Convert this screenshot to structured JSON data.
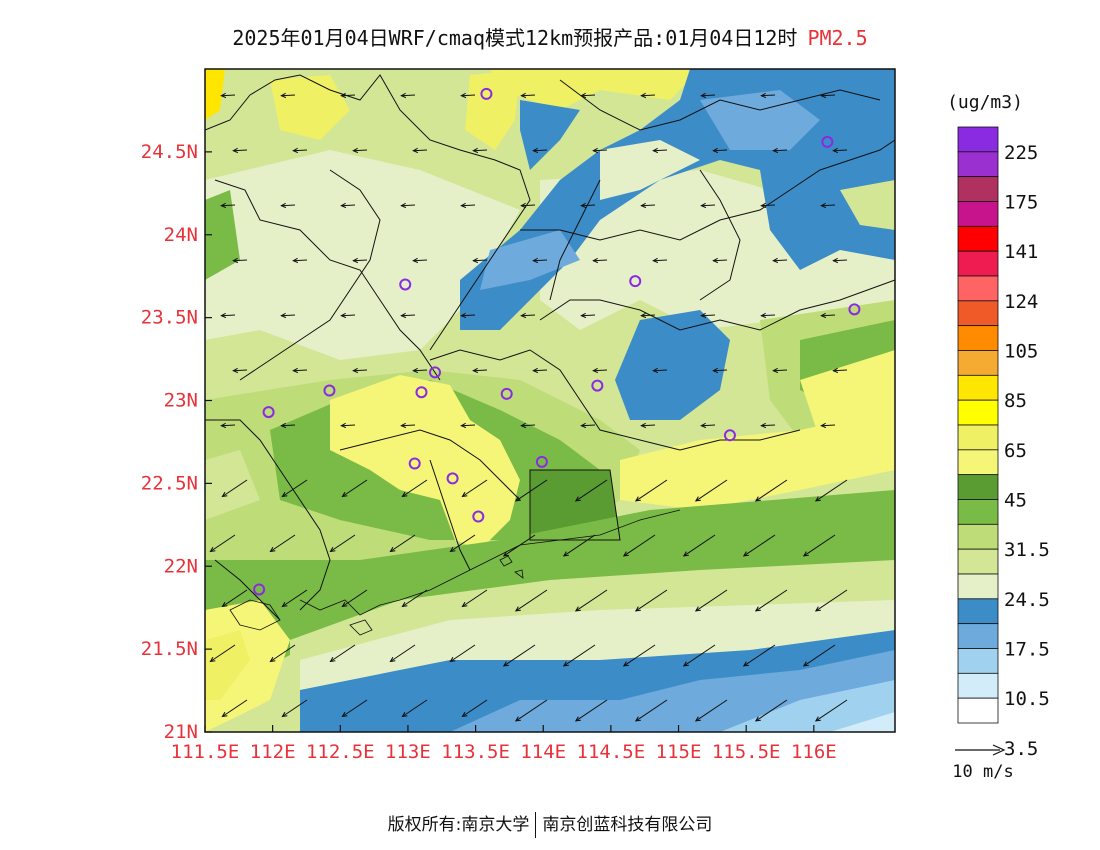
{
  "title": {
    "main": "2025年01月04日WRF/cmaq模式12km预报产品:01月04日12时",
    "pollutant": "PM2.5"
  },
  "axes": {
    "lon_range": [
      111.5,
      116.6
    ],
    "lat_range": [
      21.0,
      25.0
    ],
    "x_ticks": [
      "111.5E",
      "112E",
      "112.5E",
      "113E",
      "113.5E",
      "114E",
      "114.5E",
      "115E",
      "115.5E",
      "116E"
    ],
    "x_values": [
      111.5,
      112.0,
      112.5,
      113.0,
      113.5,
      114.0,
      114.5,
      115.0,
      115.5,
      116.0
    ],
    "y_ticks": [
      "21N",
      "21.5N",
      "22N",
      "22.5N",
      "23N",
      "23.5N",
      "24N",
      "24.5N"
    ],
    "y_values": [
      21.0,
      21.5,
      22.0,
      22.5,
      23.0,
      23.5,
      24.0,
      24.5
    ],
    "tick_color": "#e8323a"
  },
  "legend": {
    "unit": "(ug/m3)",
    "labels": [
      "225",
      "175",
      "141",
      "124",
      "105",
      "85",
      "65",
      "45",
      "31.5",
      "24.5",
      "17.5",
      "10.5",
      "3.5"
    ],
    "colors_top_to_bottom": [
      "#8a2be2",
      "#9b30d0",
      "#b03060",
      "#c8148c",
      "#ff0000",
      "#ee1c50",
      "#ff6464",
      "#f05a28",
      "#ff8c00",
      "#f5aa32",
      "#ffe600",
      "#ffff00",
      "#f0f064",
      "#f5f578",
      "#5a9b32",
      "#7aba46",
      "#bedc78",
      "#d2e696",
      "#e6f0c8",
      "#3c8cc8",
      "#6eaadc",
      "#a0d2f0",
      "#d2ecfa",
      "#ffffff"
    ],
    "wind_ref": "10 m/s"
  },
  "stations": [
    {
      "lon": 113.58,
      "lat": 24.85
    },
    {
      "lon": 116.1,
      "lat": 24.56
    },
    {
      "lon": 112.98,
      "lat": 23.7
    },
    {
      "lon": 114.68,
      "lat": 23.72
    },
    {
      "lon": 116.3,
      "lat": 23.55
    },
    {
      "lon": 113.2,
      "lat": 23.17
    },
    {
      "lon": 112.42,
      "lat": 23.06
    },
    {
      "lon": 113.1,
      "lat": 23.05
    },
    {
      "lon": 113.73,
      "lat": 23.04
    },
    {
      "lon": 114.4,
      "lat": 23.09
    },
    {
      "lon": 111.97,
      "lat": 22.93
    },
    {
      "lon": 115.38,
      "lat": 22.79
    },
    {
      "lon": 113.05,
      "lat": 22.62
    },
    {
      "lon": 113.99,
      "lat": 22.63
    },
    {
      "lon": 113.33,
      "lat": 22.53
    },
    {
      "lon": 113.52,
      "lat": 22.3
    },
    {
      "lon": 111.9,
      "lat": 21.86
    }
  ],
  "copyright": {
    "left": "版权所有:南京大学",
    "right": "南京创蓝科技有限公司"
  }
}
